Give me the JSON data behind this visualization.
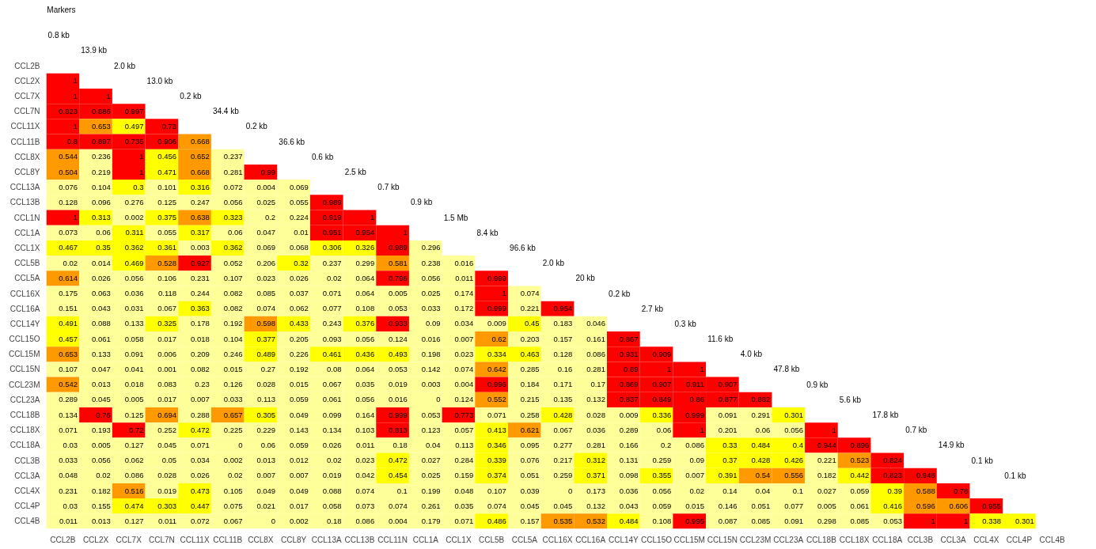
{
  "chart_data": {
    "type": "heatmap",
    "data_labels": true,
    "categories": [
      "CCL2B",
      "CCL2X",
      "CCL7X",
      "CCL7N",
      "CCL11X",
      "CCL11B",
      "CCL8X",
      "CCL8Y",
      "CCL13A",
      "CCL13B",
      "CCL11N",
      "CCL1A",
      "CCL1X",
      "CCL5B",
      "CCL5A",
      "CCL16X",
      "CCL16A",
      "CCL14Y",
      "CCL15O",
      "CCL15M",
      "CCL15N",
      "CCL23M",
      "CCL23A",
      "CCL18B",
      "CCL18X",
      "CCL18A",
      "CCL3B",
      "CCL3A",
      "CCL4X",
      "CCL4P",
      "CCL4B"
    ],
    "y_categories": [
      "CCL2B",
      "CCL2X",
      "CCL7X",
      "CCL7N",
      "CCL11X",
      "CCL11B",
      "CCL8X",
      "CCL8Y",
      "CCL13A",
      "CCL13B",
      "CCL1N",
      "CCL1A",
      "CCL1X",
      "CCL5B",
      "CCL5A",
      "CCL16X",
      "CCL16A",
      "CCL14Y",
      "CCL15O",
      "CCL15M",
      "CCL15N",
      "CCL23M",
      "CCL23A",
      "CCL18B",
      "CCL18X",
      "CCL18A",
      "CCL3B",
      "CCL3A",
      "CCL4X",
      "CCL4P",
      "CCL4B"
    ],
    "cells": [
      [
        null,
        null,
        null,
        null,
        null,
        null,
        null,
        null,
        null,
        null,
        null,
        null,
        null,
        null,
        null,
        null,
        null,
        null,
        null,
        null,
        null,
        null,
        null,
        null,
        null,
        null,
        null,
        null,
        null,
        null,
        null
      ],
      [
        1,
        null,
        null,
        null,
        null,
        null,
        null,
        null,
        null,
        null,
        null,
        null,
        null,
        null,
        null,
        null,
        null,
        null,
        null,
        null,
        null,
        null,
        null,
        null,
        null,
        null,
        null,
        null,
        null,
        null,
        null
      ],
      [
        1,
        1,
        null,
        null,
        null,
        null,
        null,
        null,
        null,
        null,
        null,
        null,
        null,
        null,
        null,
        null,
        null,
        null,
        null,
        null,
        null,
        null,
        null,
        null,
        null,
        null,
        null,
        null,
        null,
        null,
        null
      ],
      [
        0.823,
        0.886,
        0.997,
        null,
        null,
        null,
        null,
        null,
        null,
        null,
        null,
        null,
        null,
        null,
        null,
        null,
        null,
        null,
        null,
        null,
        null,
        null,
        null,
        null,
        null,
        null,
        null,
        null,
        null,
        null,
        null
      ],
      [
        1,
        0.653,
        0.497,
        0.73,
        null,
        null,
        null,
        null,
        null,
        null,
        null,
        null,
        null,
        null,
        null,
        null,
        null,
        null,
        null,
        null,
        null,
        null,
        null,
        null,
        null,
        null,
        null,
        null,
        null,
        null,
        null
      ],
      [
        0.8,
        0.897,
        0.735,
        0.906,
        0.668,
        null,
        null,
        null,
        null,
        null,
        null,
        null,
        null,
        null,
        null,
        null,
        null,
        null,
        null,
        null,
        null,
        null,
        null,
        null,
        null,
        null,
        null,
        null,
        null,
        null,
        null
      ],
      [
        0.544,
        0.236,
        1,
        0.456,
        0.652,
        0.237,
        null,
        null,
        null,
        null,
        null,
        null,
        null,
        null,
        null,
        null,
        null,
        null,
        null,
        null,
        null,
        null,
        null,
        null,
        null,
        null,
        null,
        null,
        null,
        null,
        null
      ],
      [
        0.504,
        0.219,
        1,
        0.471,
        0.668,
        0.281,
        0.99,
        null,
        null,
        null,
        null,
        null,
        null,
        null,
        null,
        null,
        null,
        null,
        null,
        null,
        null,
        null,
        null,
        null,
        null,
        null,
        null,
        null,
        null,
        null,
        null
      ],
      [
        0.076,
        0.104,
        0.3,
        0.101,
        0.316,
        0.072,
        0.004,
        0.069,
        null,
        null,
        null,
        null,
        null,
        null,
        null,
        null,
        null,
        null,
        null,
        null,
        null,
        null,
        null,
        null,
        null,
        null,
        null,
        null,
        null,
        null,
        null
      ],
      [
        0.128,
        0.096,
        0.276,
        0.125,
        0.247,
        0.056,
        0.025,
        0.055,
        0.989,
        null,
        null,
        null,
        null,
        null,
        null,
        null,
        null,
        null,
        null,
        null,
        null,
        null,
        null,
        null,
        null,
        null,
        null,
        null,
        null,
        null,
        null
      ],
      [
        1,
        0.313,
        0.002,
        0.375,
        0.638,
        0.323,
        0.2,
        0.224,
        0.919,
        1,
        null,
        null,
        null,
        null,
        null,
        null,
        null,
        null,
        null,
        null,
        null,
        null,
        null,
        null,
        null,
        null,
        null,
        null,
        null,
        null,
        null
      ],
      [
        0.073,
        0.06,
        0.311,
        0.055,
        0.317,
        0.06,
        0.047,
        0.01,
        0.951,
        0.954,
        1,
        null,
        null,
        null,
        null,
        null,
        null,
        null,
        null,
        null,
        null,
        null,
        null,
        null,
        null,
        null,
        null,
        null,
        null,
        null,
        null
      ],
      [
        0.467,
        0.35,
        0.362,
        0.361,
        0.003,
        0.362,
        0.069,
        0.068,
        0.306,
        0.326,
        0.989,
        0.296,
        null,
        null,
        null,
        null,
        null,
        null,
        null,
        null,
        null,
        null,
        null,
        null,
        null,
        null,
        null,
        null,
        null,
        null,
        null
      ],
      [
        0.02,
        0.014,
        0.469,
        0.528,
        0.927,
        0.052,
        0.206,
        0.32,
        0.237,
        0.299,
        0.581,
        0.238,
        0.016,
        null,
        null,
        null,
        null,
        null,
        null,
        null,
        null,
        null,
        null,
        null,
        null,
        null,
        null,
        null,
        null,
        null,
        null
      ],
      [
        0.614,
        0.026,
        0.056,
        0.106,
        0.231,
        0.107,
        0.023,
        0.026,
        0.02,
        0.064,
        0.796,
        0.056,
        0.011,
        0.999,
        null,
        null,
        null,
        null,
        null,
        null,
        null,
        null,
        null,
        null,
        null,
        null,
        null,
        null,
        null,
        null,
        null
      ],
      [
        0.175,
        0.063,
        0.036,
        0.118,
        0.244,
        0.082,
        0.085,
        0.037,
        0.071,
        0.064,
        0.005,
        0.025,
        0.174,
        1,
        0.074,
        null,
        null,
        null,
        null,
        null,
        null,
        null,
        null,
        null,
        null,
        null,
        null,
        null,
        null,
        null,
        null
      ],
      [
        0.151,
        0.043,
        0.031,
        0.067,
        0.363,
        0.082,
        0.074,
        0.062,
        0.077,
        0.108,
        0.053,
        0.033,
        0.172,
        0.999,
        0.221,
        0.954,
        null,
        null,
        null,
        null,
        null,
        null,
        null,
        null,
        null,
        null,
        null,
        null,
        null,
        null,
        null
      ],
      [
        0.491,
        0.088,
        0.133,
        0.325,
        0.178,
        0.192,
        0.598,
        0.433,
        0.243,
        0.376,
        0.933,
        0.09,
        0.034,
        0.009,
        0.45,
        0.183,
        0.046,
        null,
        null,
        null,
        null,
        null,
        null,
        null,
        null,
        null,
        null,
        null,
        null,
        null,
        null
      ],
      [
        0.457,
        0.061,
        0.058,
        0.017,
        0.018,
        0.104,
        0.377,
        0.205,
        0.093,
        0.056,
        0.124,
        0.016,
        0.007,
        0.62,
        0.203,
        0.157,
        0.161,
        0.867,
        null,
        null,
        null,
        null,
        null,
        null,
        null,
        null,
        null,
        null,
        null,
        null,
        null
      ],
      [
        0.653,
        0.133,
        0.091,
        0.006,
        0.209,
        0.246,
        0.489,
        0.226,
        0.461,
        0.436,
        0.493,
        0.198,
        0.023,
        0.334,
        0.463,
        0.128,
        0.086,
        0.931,
        0.909,
        null,
        null,
        null,
        null,
        null,
        null,
        null,
        null,
        null,
        null,
        null,
        null
      ],
      [
        0.107,
        0.047,
        0.041,
        0.001,
        0.082,
        0.015,
        0.27,
        0.192,
        0.08,
        0.064,
        0.053,
        0.142,
        0.074,
        0.642,
        0.285,
        0.16,
        0.281,
        0.89,
        1,
        1,
        null,
        null,
        null,
        null,
        null,
        null,
        null,
        null,
        null,
        null,
        null
      ],
      [
        0.542,
        0.013,
        0.018,
        0.083,
        0.23,
        0.126,
        0.028,
        0.015,
        0.067,
        0.035,
        0.019,
        0.003,
        0.004,
        0.996,
        0.184,
        0.171,
        0.17,
        0.869,
        0.907,
        0.911,
        0.907,
        null,
        null,
        null,
        null,
        null,
        null,
        null,
        null,
        null,
        null
      ],
      [
        0.289,
        0.045,
        0.005,
        0.017,
        0.007,
        0.033,
        0.113,
        0.059,
        0.061,
        0.056,
        0.016,
        0,
        0.124,
        0.552,
        0.215,
        0.135,
        0.132,
        0.837,
        0.849,
        0.86,
        0.877,
        0.882,
        null,
        null,
        null,
        null,
        null,
        null,
        null,
        null,
        null
      ],
      [
        0.134,
        0.76,
        0.125,
        0.694,
        0.288,
        0.657,
        0.305,
        0.049,
        0.099,
        0.164,
        0.999,
        0.053,
        0.773,
        0.071,
        0.258,
        0.428,
        0.028,
        0.009,
        0.336,
        0.999,
        0.091,
        0.291,
        0.301,
        null,
        null,
        null,
        null,
        null,
        null,
        null,
        null
      ],
      [
        0.071,
        0.193,
        0.72,
        0.252,
        0.472,
        0.225,
        0.229,
        0.143,
        0.134,
        0.103,
        0.813,
        0.123,
        0.057,
        0.413,
        0.621,
        0.067,
        0.036,
        0.289,
        0.06,
        1,
        0.201,
        0.06,
        0.056,
        1,
        null,
        null,
        null,
        null,
        null,
        null,
        null
      ],
      [
        0.03,
        0.005,
        0.127,
        0.045,
        0.071,
        0,
        0.06,
        0.059,
        0.026,
        0.011,
        0.18,
        0.04,
        0.113,
        0.346,
        0.095,
        0.277,
        0.281,
        0.166,
        0.2,
        0.086,
        0.33,
        0.484,
        0.4,
        0.944,
        0.896,
        null,
        null,
        null,
        null,
        null,
        null
      ],
      [
        0.033,
        0.056,
        0.062,
        0.05,
        0.034,
        0.002,
        0.013,
        0.012,
        0.02,
        0.023,
        0.472,
        0.027,
        0.284,
        0.339,
        0.076,
        0.217,
        0.312,
        0.131,
        0.259,
        0.09,
        0.37,
        0.428,
        0.426,
        0.221,
        0.523,
        0.824,
        null,
        null,
        null,
        null,
        null
      ],
      [
        0.048,
        0.02,
        0.086,
        0.028,
        0.026,
        0.02,
        0.007,
        0.007,
        0.019,
        0.042,
        0.454,
        0.025,
        0.159,
        0.374,
        0.051,
        0.259,
        0.371,
        0.098,
        0.355,
        0.007,
        0.391,
        0.54,
        0.556,
        0.182,
        0.442,
        0.823,
        0.948,
        null,
        null,
        null,
        null
      ],
      [
        0.231,
        0.182,
        0.516,
        0.019,
        0.473,
        0.105,
        0.049,
        0.049,
        0.088,
        0.074,
        0.1,
        0.199,
        0.048,
        0.107,
        0.039,
        0,
        0.173,
        0.036,
        0.056,
        0.02,
        0.14,
        0.04,
        0.1,
        0.027,
        0.059,
        0.39,
        0.588,
        0.78,
        null,
        null,
        null
      ],
      [
        0.03,
        0.155,
        0.474,
        0.303,
        0.447,
        0.075,
        0.021,
        0.017,
        0.058,
        0.073,
        0.074,
        0.261,
        0.035,
        0.074,
        0.045,
        0.045,
        0.132,
        0.043,
        0.059,
        0.015,
        0.146,
        0.051,
        0.077,
        0.005,
        0.061,
        0.416,
        0.596,
        0.606,
        0.955,
        null,
        null
      ],
      [
        0.011,
        0.013,
        0.127,
        0.011,
        0.072,
        0.067,
        0,
        0.002,
        0.18,
        0.086,
        0.004,
        0.179,
        0.071,
        0.486,
        0.157,
        0.535,
        0.532,
        0.484,
        0.108,
        0.995,
        0.087,
        0.085,
        0.091,
        0.298,
        0.085,
        0.053,
        1,
        1,
        0.338,
        0.301,
        null
      ]
    ],
    "annotations": [
      "Markers",
      "0.8 kb",
      "13.9 kb",
      "2.0 kb",
      "13.0 kb",
      "0.2 kb",
      "34.4 kb",
      "0.2 kb",
      "36.6 kb",
      "0.6 kb",
      "2.5 kb",
      "0.7 kb",
      "0.9 kb",
      "1.5 Mb",
      "8.4 kb",
      "96.6 kb",
      "2.0 kb",
      "20 kb",
      "0.2 kb",
      "2.7 kb",
      "0.3 kb",
      "11.6 kb",
      "4.0 kb",
      "47.8 kb",
      "0.9 kb",
      "5.6 kb",
      "17.8 kb",
      "0.7 kb",
      "14.9 kb",
      "0.1 kb",
      "0.1 kb"
    ]
  }
}
